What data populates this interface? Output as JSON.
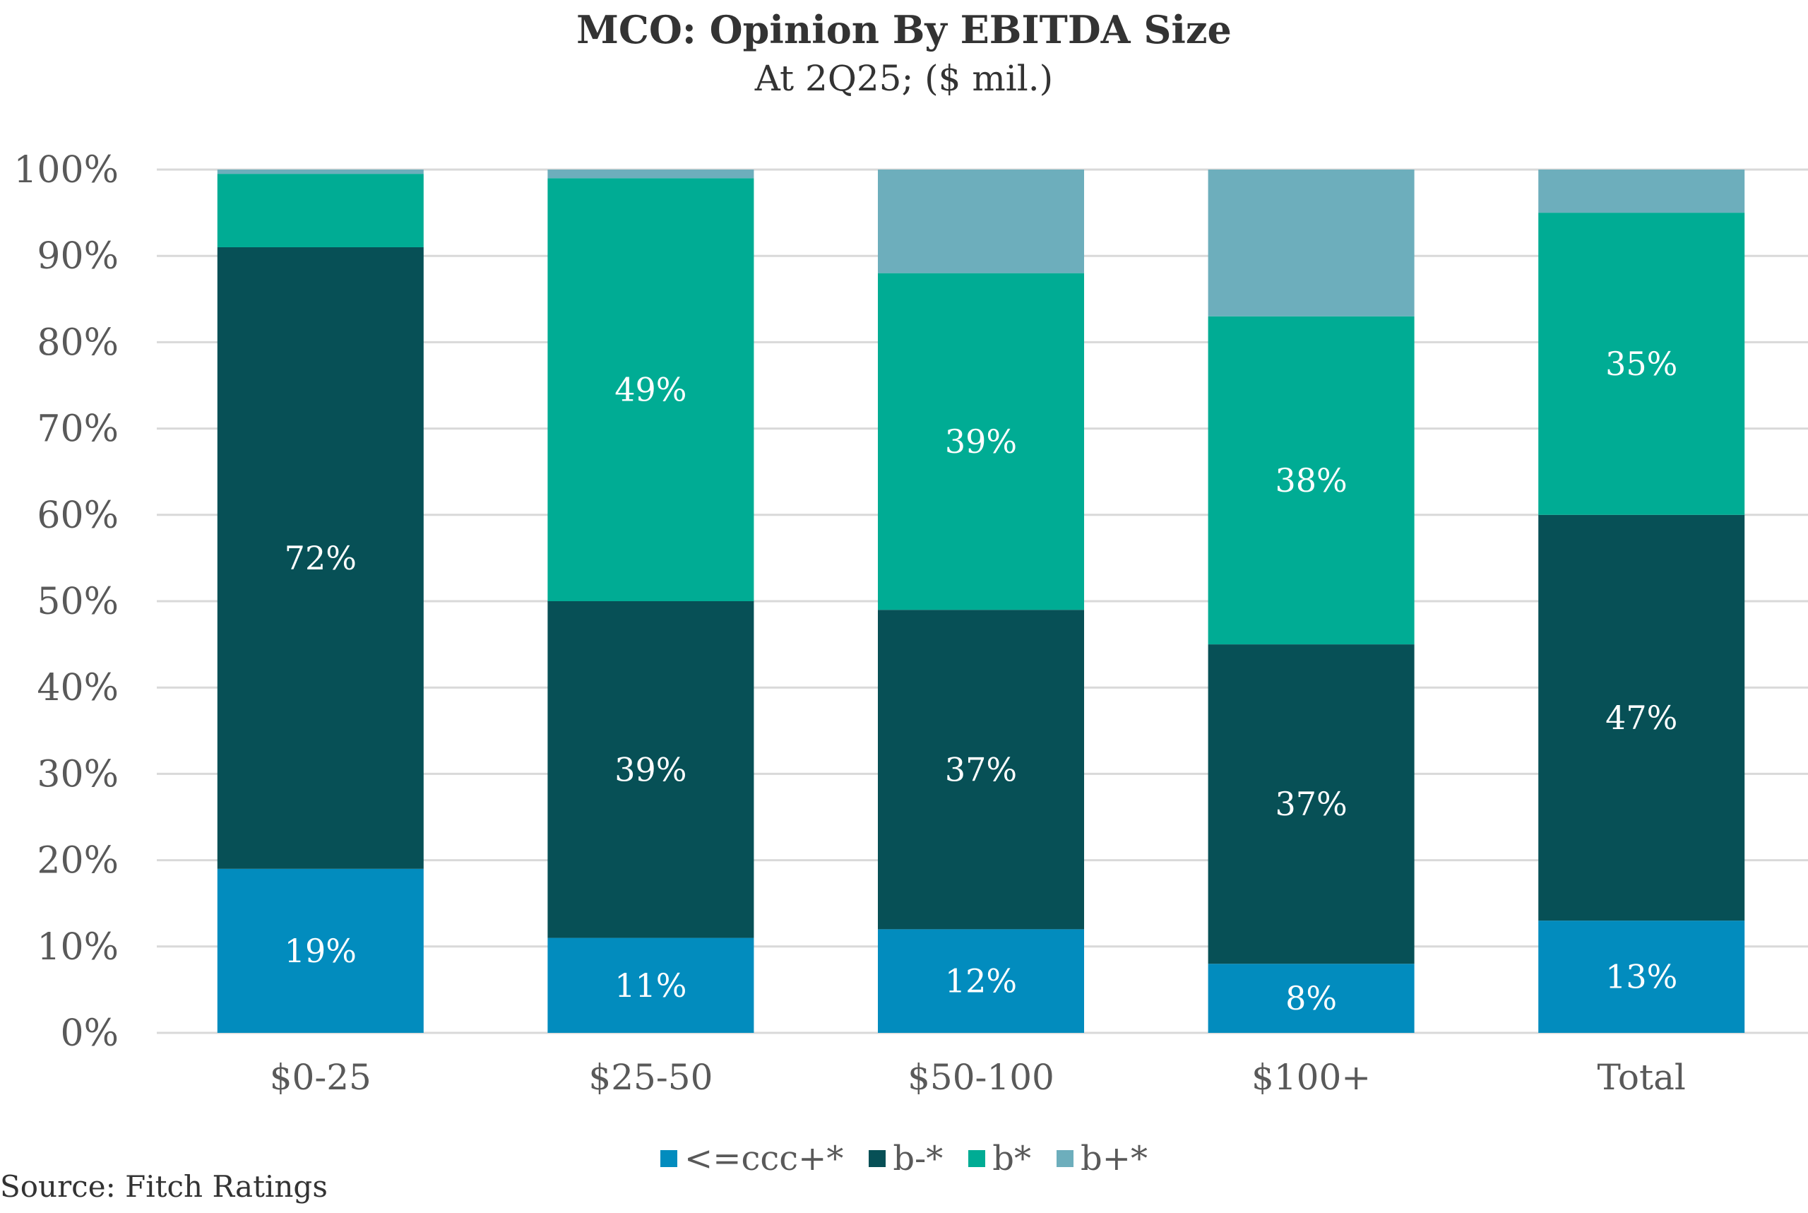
{
  "chart_data": {
    "type": "bar",
    "stacked": true,
    "title": "MCO: Opinion By EBITDA Size",
    "subtitle": "At 2Q25; ($ mil.)",
    "xlabel": "",
    "ylabel": "",
    "ylim": [
      0,
      100
    ],
    "yticks": [
      0,
      10,
      20,
      30,
      40,
      50,
      60,
      70,
      80,
      90,
      100
    ],
    "ytick_labels": [
      "0%",
      "10%",
      "20%",
      "30%",
      "40%",
      "50%",
      "60%",
      "70%",
      "80%",
      "90%",
      "100%"
    ],
    "grid": true,
    "legend_position": "bottom-center",
    "categories": [
      "$0-25",
      "$25-50",
      "$50-100",
      "$100+",
      "Total"
    ],
    "series": [
      {
        "name": "<=ccc+*",
        "color": "#028CBE",
        "values": [
          19,
          11,
          12,
          8,
          13
        ],
        "labels": [
          "19%",
          "11%",
          "12%",
          "8%",
          "13%"
        ]
      },
      {
        "name": "b-*",
        "color": "#075056",
        "values": [
          72,
          39,
          37,
          37,
          47
        ],
        "labels": [
          "72%",
          "39%",
          "37%",
          "37%",
          "47%"
        ]
      },
      {
        "name": "b*",
        "color": "#00AC94",
        "values": [
          8.5,
          49,
          39,
          38,
          35
        ],
        "labels": [
          "",
          "49%",
          "39%",
          "38%",
          "35%"
        ]
      },
      {
        "name": "b+*",
        "color": "#6DAEBC",
        "values": [
          0.5,
          1,
          12,
          17,
          5
        ],
        "labels": [
          "",
          "",
          "",
          "",
          ""
        ]
      }
    ]
  },
  "source": "Source: Fitch Ratings"
}
